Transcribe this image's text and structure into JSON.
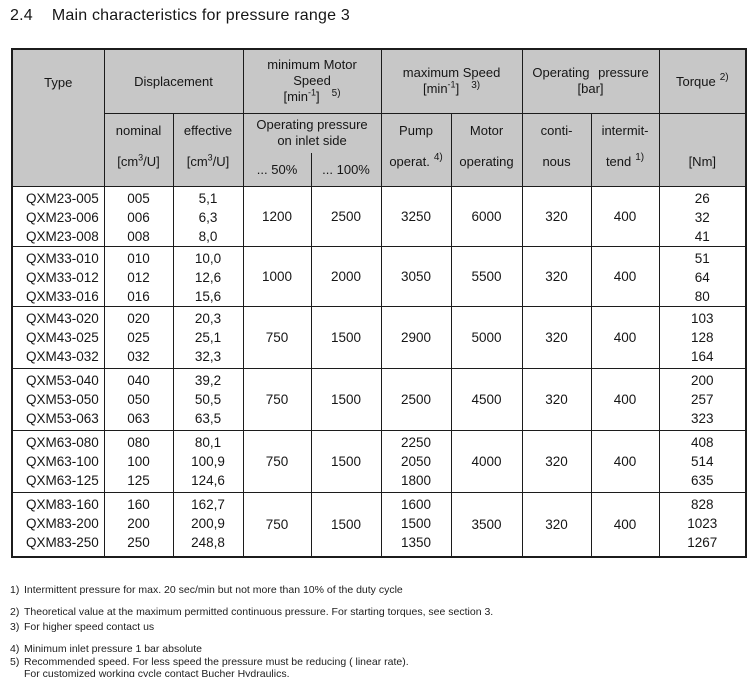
{
  "page": {
    "section": "2.4",
    "title": "Main characteristics for pressure range 3"
  },
  "table": {
    "header": {
      "type": "Type",
      "displacement": "Displacement",
      "min_motor_speed": {
        "line1": "minimum Motor",
        "line2": "Speed",
        "unit_pre": "[min",
        "unit_sup": "-1",
        "unit_post": "]",
        "marker": "5)"
      },
      "max_speed": {
        "line1": "maximum Speed",
        "unit_pre": "[min",
        "unit_sup": "-1",
        "unit_post": "]",
        "marker": "3)"
      },
      "operating_pressure": {
        "line1": "Operating pressure",
        "line2": "[bar]"
      },
      "torque": {
        "label": "Torque",
        "marker": "2)"
      },
      "nominal": {
        "label": "nominal",
        "unit_pre": "[cm",
        "unit_sup": "3",
        "unit_post": "/U]"
      },
      "effective": {
        "label": "effective",
        "unit_pre": "[cm",
        "unit_sup": "3",
        "unit_post": "/U]"
      },
      "inlet_pressure": {
        "line1": "Operating pressure",
        "line2": "on inlet side"
      },
      "pct50": "... 50%",
      "pct100": "... 100%",
      "pump": {
        "line1": "Pump",
        "line2": "operat.",
        "marker": "4)"
      },
      "motor": {
        "line1": "Motor",
        "line2": "operating"
      },
      "continuous": {
        "line1": "conti-",
        "line2": "nous"
      },
      "intermittent": {
        "line1": "intermit-",
        "line2": "tend",
        "marker": "1)"
      },
      "torque_unit": "[Nm]"
    },
    "groups": [
      {
        "types": [
          "QXM23-005",
          "QXM23-006",
          "QXM23-008"
        ],
        "nominal": [
          "005",
          "006",
          "008"
        ],
        "effective": [
          "5,1",
          "6,3",
          "8,0"
        ],
        "pct50": "1200",
        "pct100": "2500",
        "pump": [
          "3250"
        ],
        "motor": "6000",
        "continuous": "320",
        "intermittent": "400",
        "torque": [
          "26",
          "32",
          "41"
        ]
      },
      {
        "types": [
          "QXM33-010",
          "QXM33-012",
          "QXM33-016"
        ],
        "nominal": [
          "010",
          "012",
          "016"
        ],
        "effective": [
          "10,0",
          "12,6",
          "15,6"
        ],
        "pct50": "1000",
        "pct100": "2000",
        "pump": [
          "3050"
        ],
        "motor": "5500",
        "continuous": "320",
        "intermittent": "400",
        "torque": [
          "51",
          "64",
          "80"
        ]
      },
      {
        "types": [
          "QXM43-020",
          "QXM43-025",
          "QXM43-032"
        ],
        "nominal": [
          "020",
          "025",
          "032"
        ],
        "effective": [
          "20,3",
          "25,1",
          "32,3"
        ],
        "pct50": "750",
        "pct100": "1500",
        "pump": [
          "2900"
        ],
        "motor": "5000",
        "continuous": "320",
        "intermittent": "400",
        "torque": [
          "103",
          "128",
          "164"
        ]
      },
      {
        "types": [
          "QXM53-040",
          "QXM53-050",
          "QXM53-063"
        ],
        "nominal": [
          "040",
          "050",
          "063"
        ],
        "effective": [
          "39,2",
          "50,5",
          "63,5"
        ],
        "pct50": "750",
        "pct100": "1500",
        "pump": [
          "2500"
        ],
        "motor": "4500",
        "continuous": "320",
        "intermittent": "400",
        "torque": [
          "200",
          "257",
          "323"
        ]
      },
      {
        "types": [
          "QXM63-080",
          "QXM63-100",
          "QXM63-125"
        ],
        "nominal": [
          "080",
          "100",
          "125"
        ],
        "effective": [
          "80,1",
          "100,9",
          "124,6"
        ],
        "pct50": "750",
        "pct100": "1500",
        "pump": [
          "2250",
          "2050",
          "1800"
        ],
        "motor": "4000",
        "continuous": "320",
        "intermittent": "400",
        "torque": [
          "408",
          "514",
          "635"
        ]
      },
      {
        "types": [
          "QXM83-160",
          "QXM83-200",
          "QXM83-250"
        ],
        "nominal": [
          "160",
          "200",
          "250"
        ],
        "effective": [
          "162,7",
          "200,9",
          "248,8"
        ],
        "pct50": "750",
        "pct100": "1500",
        "pump": [
          "1600",
          "1500",
          "1350"
        ],
        "motor": "3500",
        "continuous": "320",
        "intermittent": "400",
        "torque": [
          "828",
          "1023",
          "1267"
        ]
      }
    ]
  },
  "footnotes": [
    {
      "marker": "1)",
      "text": "Intermittent pressure for max. 20 sec/min but not more than 10% of the duty cycle"
    },
    {
      "marker": "2)",
      "text": "Theoretical value at the maximum permitted continuous pressure. For starting torques, see section 3."
    },
    {
      "marker": "3)",
      "text": "For higher speed contact us"
    },
    {
      "marker": "4)",
      "text": "Minimum inlet pressure 1 bar absolute"
    },
    {
      "marker": "5)",
      "text": "Recommended speed. For less speed the pressure must be reducing ( linear rate)."
    },
    {
      "marker": "",
      "text": "For customized working cycle contact Bucher Hydraulics."
    }
  ]
}
